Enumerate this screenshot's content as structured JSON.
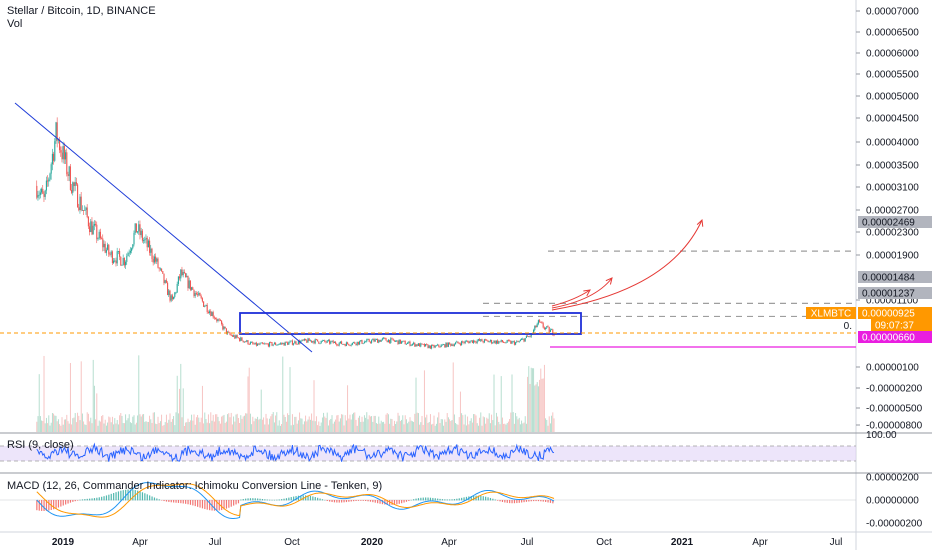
{
  "header": {
    "title": "Stellar / Bitcoin, 1D, BINANCE",
    "volume_label": "Vol"
  },
  "colors": {
    "up": "#26a69a",
    "down": "#ef5350",
    "trendline": "#1e3cd8",
    "box": "#1f2fd8",
    "orange": "#ff9800",
    "magenta": "#e91ee0",
    "red_arrow": "#e53935",
    "dashed": "#9e9e9e",
    "rsi_line": "#2962ff",
    "rsi_band": "#e1d4f7",
    "macd_line": "#2196f3",
    "signal_line": "#ff9800",
    "tag_gray": "#b2b5be"
  },
  "price_axis": {
    "labels": [
      "0.00007000",
      "0.00006500",
      "0.00006000",
      "0.00005500",
      "0.00005000",
      "0.00004500",
      "0.00004000",
      "0.00003500",
      "0.00003100",
      "0.00002700",
      "0.00002300",
      "0.00001900",
      "0.00001100",
      "0.00000100",
      "-0.00000200",
      "-0.00000500",
      "-0.00000800"
    ],
    "tags": [
      {
        "text": "0.00002469",
        "kind": "gray"
      },
      {
        "text": "0.00001484",
        "kind": "gray"
      },
      {
        "text": "0.00001237",
        "kind": "gray"
      },
      {
        "text": "0.00000925",
        "kind": "orange"
      },
      {
        "text": "09:07:37",
        "kind": "orange"
      },
      {
        "text": "0.00000660",
        "kind": "magenta"
      }
    ],
    "symbol_tag": "XLMBTC",
    "partial_label": "0."
  },
  "rsi_panel": {
    "label": "RSI (9, close)",
    "axis_label": "100.00"
  },
  "macd_panel": {
    "label": "MACD (12, 26, Commander Indicator: Ichimoku Conversion Line - Tenken, 9)",
    "axis_labels": [
      "0.00000200",
      "0.00000000",
      "-0.00000200"
    ]
  },
  "time_axis": {
    "labels": [
      {
        "text": "2019",
        "bold": true
      },
      {
        "text": "Apr",
        "bold": false
      },
      {
        "text": "Jul",
        "bold": false
      },
      {
        "text": "Oct",
        "bold": false
      },
      {
        "text": "2020",
        "bold": true
      },
      {
        "text": "Apr",
        "bold": false
      },
      {
        "text": "Jul",
        "bold": false
      },
      {
        "text": "Oct",
        "bold": false
      },
      {
        "text": "2021",
        "bold": true
      },
      {
        "text": "Apr",
        "bold": false
      },
      {
        "text": "Jul",
        "bold": false
      }
    ]
  },
  "chart_data": {
    "type": "candlestick",
    "symbol": "XLMBTC",
    "exchange": "BINANCE",
    "interval": "1D",
    "price_path": [
      {
        "t": "2018-12-01",
        "p": 3.7e-05
      },
      {
        "t": "2018-12-10",
        "p": 3.4e-05
      },
      {
        "t": "2018-12-24",
        "p": 4.7e-05
      },
      {
        "t": "2019-01-10",
        "p": 3.8e-05
      },
      {
        "t": "2019-02-01",
        "p": 3e-05
      },
      {
        "t": "2019-02-25",
        "p": 2.4e-05
      },
      {
        "t": "2019-03-15",
        "p": 2.3e-05
      },
      {
        "t": "2019-03-29",
        "p": 2.9e-05
      },
      {
        "t": "2019-04-20",
        "p": 2.3e-05
      },
      {
        "t": "2019-05-10",
        "p": 1.5e-05
      },
      {
        "t": "2019-05-20",
        "p": 2.05e-05
      },
      {
        "t": "2019-06-10",
        "p": 1.6e-05
      },
      {
        "t": "2019-07-01",
        "p": 1.2e-05
      },
      {
        "t": "2019-07-15",
        "p": 9e-06
      },
      {
        "t": "2019-08-15",
        "p": 7e-06
      },
      {
        "t": "2019-09-15",
        "p": 7.2e-06
      },
      {
        "t": "2019-10-20",
        "p": 7.8e-06
      },
      {
        "t": "2019-12-01",
        "p": 7.2e-06
      },
      {
        "t": "2020-01-15",
        "p": 8e-06
      },
      {
        "t": "2020-03-12",
        "p": 6.6e-06
      },
      {
        "t": "2020-05-01",
        "p": 7.8e-06
      },
      {
        "t": "2020-06-20",
        "p": 7.4e-06
      },
      {
        "t": "2020-07-07",
        "p": 8.8e-06
      },
      {
        "t": "2020-07-15",
        "p": 1.12e-05
      },
      {
        "t": "2020-07-25",
        "p": 1e-05
      },
      {
        "t": "2020-08-03",
        "p": 9.3e-06
      }
    ],
    "levels": [
      {
        "value": 2.469e-05,
        "style": "dashed"
      },
      {
        "value": 1.484e-05,
        "style": "dashed"
      },
      {
        "value": 1.237e-05,
        "style": "dashed"
      },
      {
        "value": 9.25e-06,
        "style": "dashed-orange"
      },
      {
        "value": 6.6e-06,
        "style": "solid-magenta"
      }
    ]
  }
}
